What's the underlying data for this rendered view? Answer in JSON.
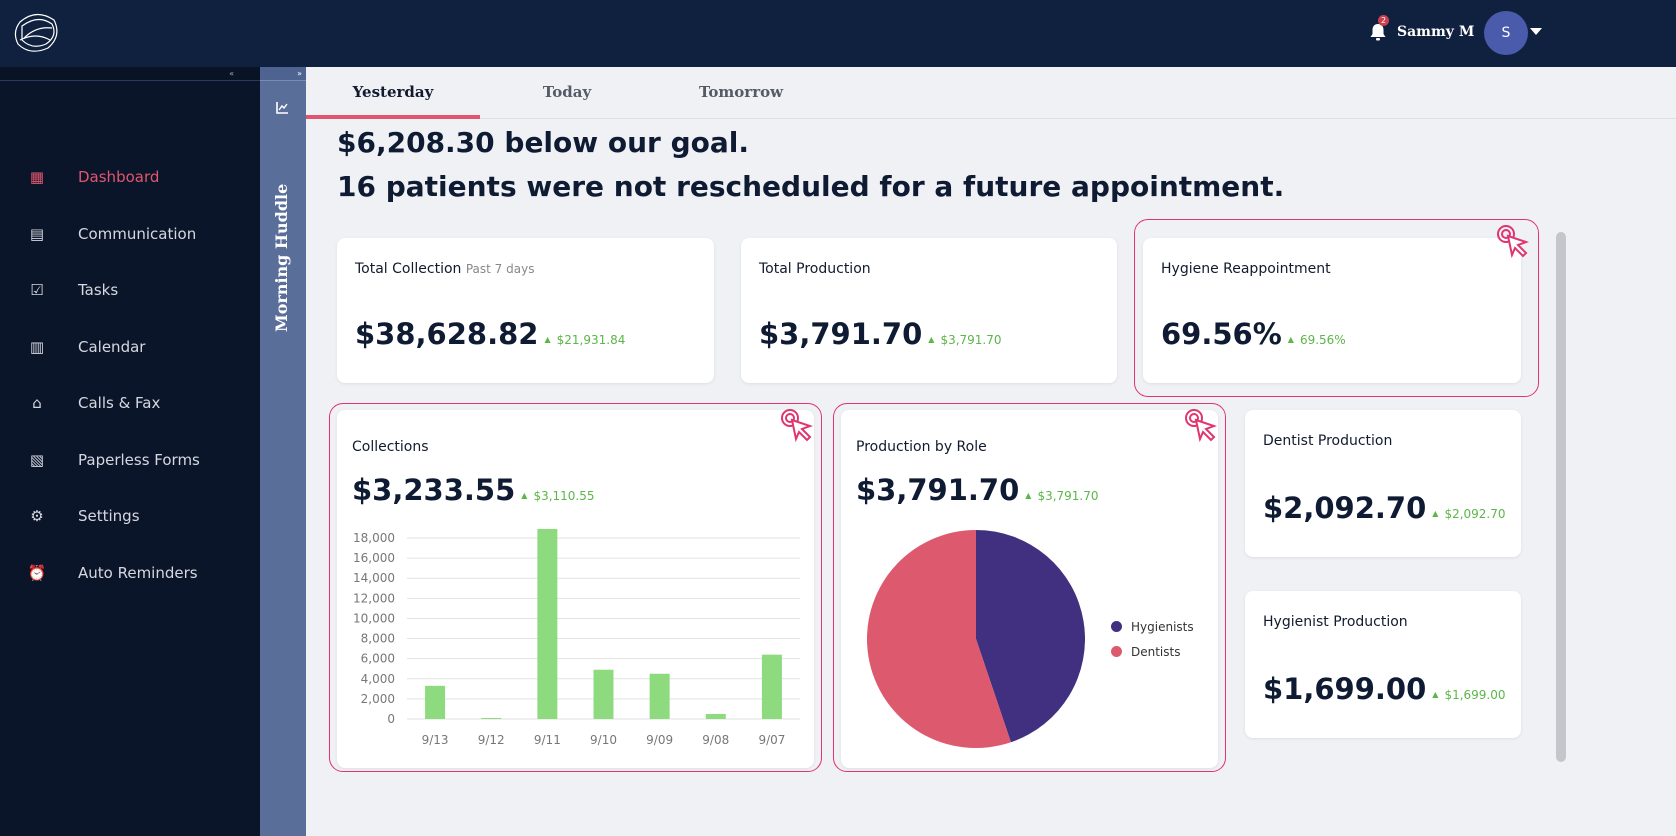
{
  "header": {
    "user_name": "Sammy M",
    "avatar_initial": "S",
    "notification_count": "2"
  },
  "sidebar": {
    "collapse": "«",
    "items": [
      {
        "label": "Dashboard",
        "icon": "dashboard-icon",
        "glyph": "▦"
      },
      {
        "label": "Communication",
        "icon": "chat-icon",
        "glyph": "▤"
      },
      {
        "label": "Tasks",
        "icon": "checkbox-icon",
        "glyph": "☑"
      },
      {
        "label": "Calendar",
        "icon": "calendar-icon",
        "glyph": "▥"
      },
      {
        "label": "Calls & Fax",
        "icon": "inbox-icon",
        "glyph": "⌂"
      },
      {
        "label": "Paperless Forms",
        "icon": "clipboard-icon",
        "glyph": "▧"
      },
      {
        "label": "Settings",
        "icon": "gear-icon",
        "glyph": "⚙"
      },
      {
        "label": "Auto Reminders",
        "icon": "alarm-icon",
        "glyph": "⏰"
      }
    ]
  },
  "panel": {
    "label": "Morning Huddle",
    "expand": "»"
  },
  "tabs": [
    "Yesterday",
    "Today",
    "Tomorrow"
  ],
  "headline": [
    "$6,208.30 below our goal.",
    "16 patients were not rescheduled for a future appointment."
  ],
  "cards": {
    "total_collection": {
      "title": "Total Collection",
      "subtitle": "Past 7 days",
      "value": "$38,628.82",
      "delta": "$21,931.84"
    },
    "total_production": {
      "title": "Total Production",
      "value": "$3,791.70",
      "delta": "$3,791.70"
    },
    "hygiene": {
      "title": "Hygiene Reappointment",
      "value": "69.56%",
      "delta": "69.56%"
    },
    "collections": {
      "title": "Collections",
      "value": "$3,233.55",
      "delta": "$3,110.55"
    },
    "production_role": {
      "title": "Production by Role",
      "value": "$3,791.70",
      "delta": "$3,791.70"
    },
    "dentist": {
      "title": "Dentist Production",
      "value": "$2,092.70",
      "delta": "$2,092.70"
    },
    "hygienist": {
      "title": "Hygienist Production",
      "value": "$1,699.00",
      "delta": "$1,699.00"
    }
  },
  "chart_data": [
    {
      "type": "bar",
      "title": "Collections",
      "categories": [
        "9/13",
        "9/12",
        "9/11",
        "9/10",
        "9/09",
        "9/08",
        "9/07"
      ],
      "values": [
        3300,
        100,
        18900,
        4900,
        4500,
        500,
        6400
      ],
      "ylim": [
        0,
        18000
      ],
      "yticks": [
        "0",
        "2,000",
        "4,000",
        "6,000",
        "8,000",
        "10,000",
        "12,000",
        "14,000",
        "16,000",
        "18,000"
      ],
      "color": "#8ddb7e",
      "grid": true
    },
    {
      "type": "pie",
      "title": "Production by Role",
      "labels": [
        "Hygienists",
        "Dentists"
      ],
      "values": [
        1699.0,
        2092.7
      ],
      "colors": [
        "#41307f",
        "#dd5a6e"
      ],
      "legend": "right"
    }
  ]
}
